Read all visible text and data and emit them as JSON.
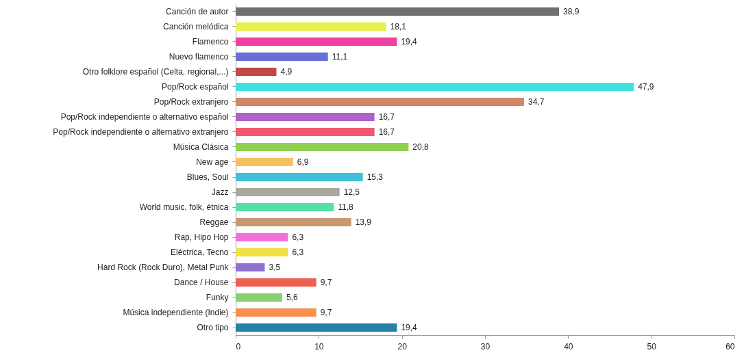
{
  "chart_data": {
    "type": "bar",
    "orientation": "horizontal",
    "categories": [
      "Canción de autor",
      "Canción melódica",
      "Flamenco",
      "Nuevo flamenco",
      "Otro folklore español (Celta, regional,...)",
      "Pop/Rock español",
      "Pop/Rock extranjero",
      "Pop/Rock independiente o alternativo español",
      "Pop/Rock independiente o alternativo extranjero",
      "Música Clásica",
      "New age",
      "Blues, Soul",
      "Jazz",
      "World music, folk, étnica",
      "Reggae",
      "Rap, Hipo Hop",
      "Eléctrica, Tecno",
      "Hard Rock (Rock Duro), Metal Punk",
      "Dance / House",
      "Funky",
      "Música independiente (Indie)",
      "Otro tipo"
    ],
    "values": [
      38.9,
      18.1,
      19.4,
      11.1,
      4.9,
      47.9,
      34.7,
      16.7,
      16.7,
      20.8,
      6.9,
      15.3,
      12.5,
      11.8,
      13.9,
      6.3,
      6.3,
      3.5,
      9.7,
      5.6,
      9.7,
      19.4
    ],
    "value_labels": [
      "38,9",
      "18,1",
      "19,4",
      "11,1",
      "4,9",
      "47,9",
      "34,7",
      "16,7",
      "16,7",
      "20,8",
      "6,9",
      "15,3",
      "12,5",
      "11,8",
      "13,9",
      "6,3",
      "6,3",
      "3,5",
      "9,7",
      "5,6",
      "9,7",
      "19,4"
    ],
    "colors": [
      "#707070",
      "#e8f050",
      "#f040a0",
      "#6870d8",
      "#c04848",
      "#40e0e0",
      "#d08868",
      "#b060c8",
      "#f05870",
      "#90d050",
      "#f8c060",
      "#40c0d8",
      "#a8a8a0",
      "#50e0a8",
      "#c89870",
      "#f070d8",
      "#f0e040",
      "#9070d0",
      "#f06050",
      "#88d070",
      "#f89050",
      "#2880a8"
    ],
    "xlim": [
      0,
      60
    ],
    "xticks": [
      0,
      10,
      20,
      30,
      40,
      50,
      60
    ],
    "grid": false
  }
}
